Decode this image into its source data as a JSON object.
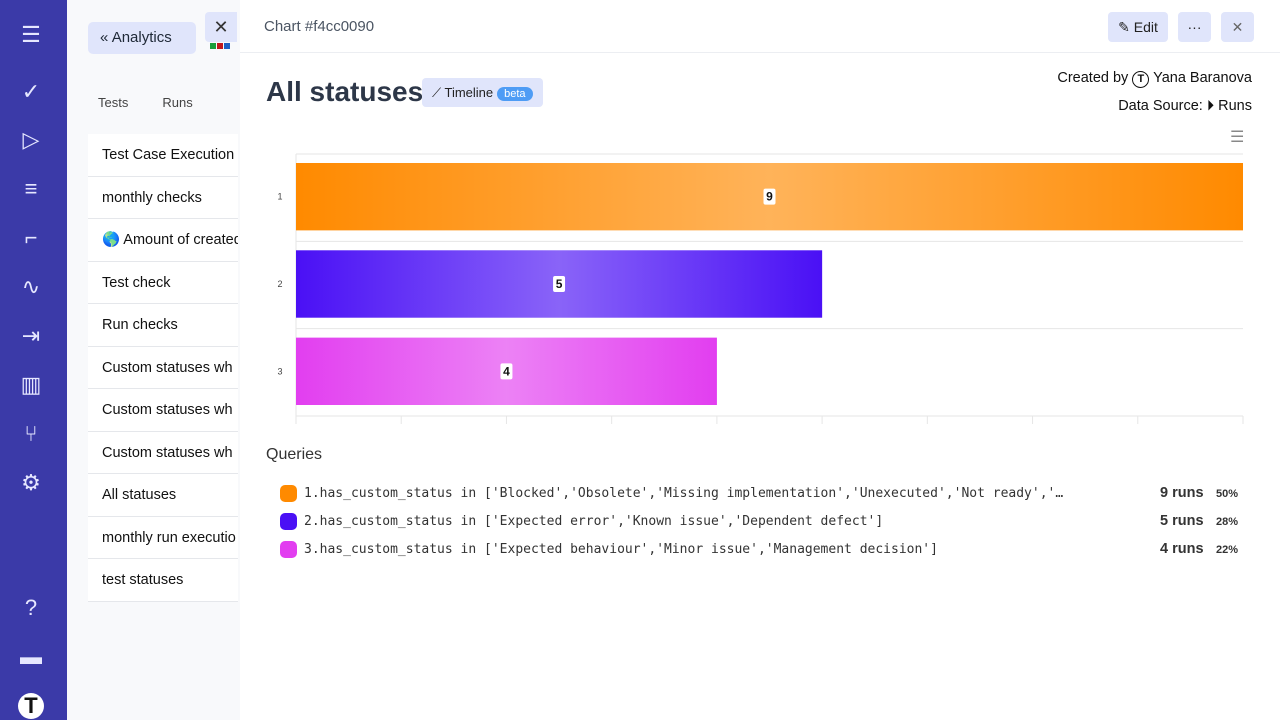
{
  "rail": {
    "icons": [
      "menu-icon",
      "check-icon",
      "play-icon",
      "list-check-icon",
      "stairs-icon",
      "pulse-icon",
      "import-icon",
      "chart-icon",
      "branch-icon",
      "gear-icon",
      "help-icon",
      "folder-icon",
      "logo-icon"
    ]
  },
  "panel": {
    "back_label": "Analytics",
    "close": "✕",
    "tabs": [
      "Tests",
      "Runs"
    ],
    "items": [
      "Test Case Execution",
      "monthly checks",
      "🌎 Amount of created",
      "Test check",
      "Run checks",
      "Custom statuses wh",
      "Custom statuses wh",
      "Custom statuses wh",
      "All statuses",
      "monthly run executio",
      "test statuses"
    ]
  },
  "header": {
    "chart_id": "Chart #f4cc0090",
    "edit_label": "Edit",
    "more": "···",
    "close": "✕"
  },
  "title": "All statuses",
  "timeline_label": "Timeline",
  "beta_label": "beta",
  "meta": {
    "created_by_label": "Created by",
    "author": "Yana Baranova",
    "source_label": "Data Source:",
    "source": "Runs"
  },
  "queries_label": "Queries",
  "queries": [
    {
      "text": "1.has_custom_status in ['Blocked','Obsolete','Missing implementation','Unexecuted','Not ready','…",
      "runs": "9 runs",
      "pct": "50%"
    },
    {
      "text": "2.has_custom_status in ['Expected error','Known issue','Dependent defect']",
      "runs": "5 runs",
      "pct": "28%"
    },
    {
      "text": "3.has_custom_status in ['Expected behaviour','Minor issue','Management decision']",
      "runs": "4 runs",
      "pct": "22%"
    }
  ],
  "chart_data": {
    "type": "bar",
    "orientation": "horizontal",
    "categories": [
      "1",
      "2",
      "3"
    ],
    "values": [
      9,
      5,
      4
    ],
    "xlim": [
      0,
      9
    ],
    "grid": true,
    "colors": [
      "#ff8a00",
      "#4a10f5",
      "#e23ef0"
    ]
  }
}
